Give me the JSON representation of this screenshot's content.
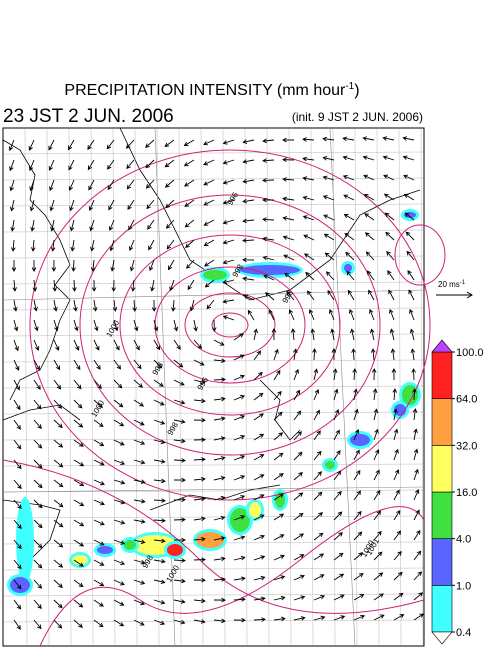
{
  "header": {
    "title": {
      "text": "PRECIPITATION INTENSITY (mm hour",
      "sup": "-1",
      "close": ")"
    },
    "valid_time": "23 JST 2 JUN. 2006",
    "init_time": "(init. 9 JST 2 JUN. 2006)"
  },
  "wind_scale": {
    "text": "20 ms",
    "sup": "-1"
  },
  "colorbar": {
    "ticks": [
      {
        "value": 0.4,
        "label": "0.4"
      },
      {
        "value": 1,
        "label": "1.0"
      },
      {
        "value": 4,
        "label": "4.0"
      },
      {
        "value": 16,
        "label": "16.0"
      },
      {
        "value": 32,
        "label": "32.0"
      },
      {
        "value": 64,
        "label": "64.0"
      },
      {
        "value": 100,
        "label": "100.0"
      }
    ],
    "colors": [
      "#40ffff",
      "#5a64ff",
      "#40e040",
      "#ffff60",
      "#ffa040",
      "#ff2020"
    ],
    "under_color": "#ffffff",
    "over_color": "#c040ff"
  },
  "contour_labels": [
    "996",
    "998",
    "998",
    "1000",
    "1000",
    "998",
    "996",
    "998",
    "1000",
    "1001",
    "998",
    "1000"
  ]
}
